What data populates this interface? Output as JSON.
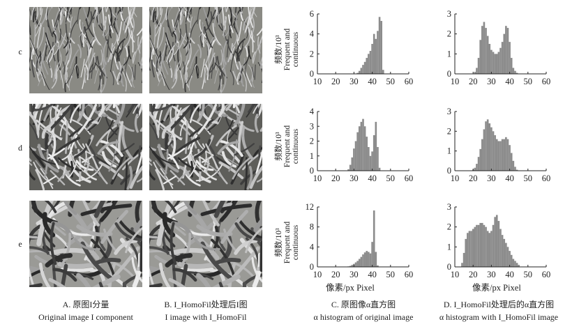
{
  "rows": [
    "c",
    "d",
    "e"
  ],
  "captions": [
    {
      "cn": "A. 原图I分量",
      "en": "Original image I component"
    },
    {
      "cn": "B. I_HomoFil处理后I图",
      "en": "I image with I_HomoFil"
    },
    {
      "cn": "C. 原图像α直方图",
      "en": "α histogram of original image"
    },
    {
      "cn": "D. I_HomoFil处理后的α直方图",
      "en": "α histogram with I_HomoFil image"
    }
  ],
  "axis_label": {
    "y_cn": "频数/10³",
    "y_en_line1": "Frequent and",
    "y_en_line2": "continuous",
    "x": "像素/px  Pixel"
  },
  "colors": {
    "bar": "#8c8c8c",
    "axis": "#222222",
    "photo_bg_c": "#8a8a84",
    "photo_bg_d": "#5e5e5a",
    "photo_bg_e": "#9a9a96"
  },
  "chart_data": [
    {
      "type": "bar",
      "row": "c",
      "panel": "C",
      "xlim": [
        10,
        60
      ],
      "ylim": [
        0,
        6
      ],
      "xticks": [
        10,
        20,
        30,
        40,
        50,
        60
      ],
      "yticks": [
        0,
        2,
        4,
        6
      ],
      "x": [
        32,
        33,
        34,
        35,
        36,
        37,
        38,
        39,
        40,
        41,
        42,
        43,
        44,
        45,
        46
      ],
      "values": [
        0.1,
        0.3,
        0.6,
        0.9,
        1.2,
        1.6,
        2.0,
        2.3,
        3.0,
        4.0,
        3.5,
        4.3,
        5.7,
        5.3,
        0.4
      ]
    },
    {
      "type": "bar",
      "row": "c",
      "panel": "D",
      "xlim": [
        10,
        60
      ],
      "ylim": [
        0,
        3
      ],
      "xticks": [
        10,
        20,
        30,
        40,
        50,
        60
      ],
      "yticks": [
        0,
        1,
        2,
        3
      ],
      "x": [
        21,
        22,
        23,
        24,
        25,
        26,
        27,
        28,
        29,
        30,
        31,
        32,
        33,
        34,
        35,
        36,
        37,
        38,
        39,
        40,
        41,
        42,
        43,
        44
      ],
      "values": [
        0.1,
        0.3,
        0.8,
        1.7,
        2.4,
        2.6,
        2.3,
        1.9,
        1.5,
        1.2,
        1.1,
        1.0,
        1.0,
        1.1,
        1.3,
        1.6,
        2.0,
        2.4,
        2.3,
        1.6,
        0.8,
        0.3,
        0.15,
        0.05
      ]
    },
    {
      "type": "bar",
      "row": "d",
      "panel": "C",
      "xlim": [
        10,
        60
      ],
      "ylim": [
        0,
        4
      ],
      "xticks": [
        10,
        20,
        30,
        40,
        50,
        60
      ],
      "yticks": [
        0,
        1,
        2,
        3,
        4
      ],
      "x": [
        27,
        28,
        29,
        30,
        31,
        32,
        33,
        34,
        35,
        36,
        37,
        38,
        39,
        40,
        41,
        42,
        43,
        44
      ],
      "values": [
        0.1,
        0.4,
        0.9,
        1.5,
        2.0,
        2.6,
        3.0,
        3.3,
        3.5,
        3.0,
        2.3,
        1.6,
        1.0,
        1.3,
        2.4,
        3.3,
        1.6,
        0.2
      ]
    },
    {
      "type": "bar",
      "row": "d",
      "panel": "D",
      "xlim": [
        10,
        60
      ],
      "ylim": [
        0,
        3
      ],
      "xticks": [
        10,
        20,
        30,
        40,
        50,
        60
      ],
      "yticks": [
        0,
        1,
        2,
        3
      ],
      "x": [
        20,
        21,
        22,
        23,
        24,
        25,
        26,
        27,
        28,
        29,
        30,
        31,
        32,
        33,
        34,
        35,
        36,
        37,
        38,
        39,
        40,
        41,
        42,
        43,
        44
      ],
      "values": [
        0.05,
        0.15,
        0.35,
        0.7,
        1.1,
        1.6,
        2.1,
        2.5,
        2.6,
        2.4,
        2.2,
        2.0,
        1.8,
        1.6,
        1.5,
        1.5,
        1.6,
        1.6,
        1.7,
        1.6,
        1.3,
        0.9,
        0.5,
        0.2,
        0.05
      ]
    },
    {
      "type": "bar",
      "row": "e",
      "panel": "C",
      "xlim": [
        10,
        60
      ],
      "ylim": [
        0,
        12
      ],
      "xticks": [
        10,
        20,
        30,
        40,
        50,
        60
      ],
      "yticks": [
        0,
        4,
        8,
        12
      ],
      "x": [
        27,
        28,
        29,
        30,
        31,
        32,
        33,
        34,
        35,
        36,
        37,
        38,
        39,
        40,
        41,
        42,
        43
      ],
      "values": [
        0.1,
        0.2,
        0.4,
        0.6,
        0.9,
        1.2,
        1.6,
        2.0,
        2.5,
        2.9,
        3.2,
        3.0,
        2.7,
        5.0,
        11.3,
        3.0,
        0.3
      ]
    },
    {
      "type": "bar",
      "row": "e",
      "panel": "D",
      "xlim": [
        10,
        60
      ],
      "ylim": [
        0,
        3
      ],
      "xticks": [
        10,
        20,
        30,
        40,
        50,
        60
      ],
      "yticks": [
        0,
        1,
        2,
        3
      ],
      "x": [
        14,
        15,
        16,
        17,
        18,
        19,
        20,
        21,
        22,
        23,
        24,
        25,
        26,
        27,
        28,
        29,
        30,
        31,
        32,
        33,
        34,
        35,
        36,
        37,
        38,
        39,
        40,
        41,
        42,
        43,
        44,
        45
      ],
      "values": [
        0.2,
        0.7,
        1.4,
        1.7,
        1.8,
        1.8,
        1.9,
        2.0,
        2.1,
        2.1,
        2.2,
        2.2,
        2.1,
        2.0,
        1.8,
        1.7,
        1.8,
        2.1,
        2.5,
        2.6,
        2.3,
        1.9,
        1.6,
        1.4,
        1.2,
        1.0,
        0.8,
        0.6,
        0.4,
        0.3,
        0.2,
        0.1
      ]
    }
  ]
}
